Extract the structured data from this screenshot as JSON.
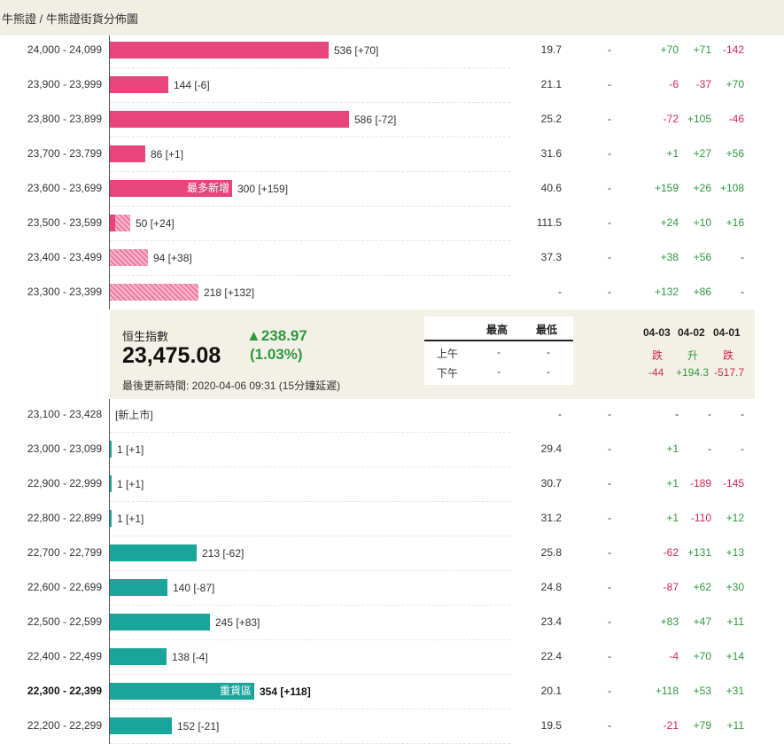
{
  "breadcrumb": "牛熊證 / 牛熊證街貨分佈圖",
  "colors": {
    "bull": "#e8457c",
    "bear": "#1aa59a",
    "up": "#2c9a3c",
    "down": "#d0284f",
    "panel": "#f3f1e7"
  },
  "rows_top": [
    {
      "range": "24,000 - 24,099",
      "label": "536 [+70]",
      "amount": 536,
      "style": "pink",
      "ratio": "19.7",
      "dash": "-",
      "c1": "+70",
      "c2": "+71",
      "c3": "-142"
    },
    {
      "range": "23,900 - 23,999",
      "label": "144 [-6]",
      "amount": 144,
      "style": "pink",
      "ratio": "21.1",
      "dash": "-",
      "c1": "-6",
      "c2": "-37",
      "c3": "+70"
    },
    {
      "range": "23,800 - 23,899",
      "label": "586 [-72]",
      "amount": 586,
      "style": "pink",
      "ratio": "25.2",
      "dash": "-",
      "c1": "-72",
      "c2": "+105",
      "c3": "-46"
    },
    {
      "range": "23,700 - 23,799",
      "label": "86 [+1]",
      "amount": 86,
      "style": "pink",
      "ratio": "31.6",
      "dash": "-",
      "c1": "+1",
      "c2": "+27",
      "c3": "+56"
    },
    {
      "range": "23,600 - 23,699",
      "label": "300 [+159]",
      "amount": 300,
      "style": "pink",
      "tag": "最多新增",
      "ratio": "40.6",
      "dash": "-",
      "c1": "+159",
      "c2": "+26",
      "c3": "+108"
    },
    {
      "range": "23,500 - 23,599",
      "label": "50 [+24]",
      "amount": 50,
      "style": "mixed",
      "solid_share": 0.24,
      "ratio": "111.5",
      "dash": "-",
      "c1": "+24",
      "c2": "+10",
      "c3": "+16"
    },
    {
      "range": "23,400 - 23,499",
      "label": "94 [+38]",
      "amount": 94,
      "style": "pinkhatch",
      "ratio": "37.3",
      "dash": "-",
      "c1": "+38",
      "c2": "+56",
      "c3": "-"
    },
    {
      "range": "23,300 - 23,399",
      "label": "218 [+132]",
      "amount": 218,
      "style": "pinkhatch",
      "ratio": "-",
      "dash": "-",
      "c1": "+132",
      "c2": "+86",
      "c3": "-"
    }
  ],
  "index": {
    "name": "恒生指數",
    "value": "23,475.08",
    "change": "▲238.97",
    "change_pct": "(1.03%)",
    "updated": "最後更新時間: 2020-04-06 09:31 (15分鐘延遲)",
    "hl_headers": [
      "最高",
      "最低"
    ],
    "hl_rows": [
      {
        "label": "上午",
        "high": "-",
        "low": "-"
      },
      {
        "label": "下午",
        "high": "-",
        "low": "-"
      }
    ],
    "dates": [
      "04-03",
      "04-02",
      "04-01"
    ],
    "directions": [
      "跌",
      "升",
      "跌"
    ],
    "day_changes": [
      "-44",
      "+194.3",
      "-517.7"
    ]
  },
  "rows_bottom": [
    {
      "range": "23,100 - 23,428",
      "label": "[新上市]",
      "amount": 0,
      "style": "none",
      "ratio": "-",
      "dash": "-",
      "c1": "-",
      "c2": "-",
      "c3": "-"
    },
    {
      "range": "23,000 - 23,099",
      "label": "1 [+1]",
      "amount": 1,
      "style": "teal",
      "ratio": "29.4",
      "dash": "-",
      "c1": "+1",
      "c2": "-",
      "c3": "-"
    },
    {
      "range": "22,900 - 22,999",
      "label": "1 [+1]",
      "amount": 1,
      "style": "teal",
      "ratio": "30.7",
      "dash": "-",
      "c1": "+1",
      "c2": "-189",
      "c3": "-145"
    },
    {
      "range": "22,800 - 22,899",
      "label": "1 [+1]",
      "amount": 1,
      "style": "teal",
      "ratio": "31.2",
      "dash": "-",
      "c1": "+1",
      "c2": "-110",
      "c3": "+12"
    },
    {
      "range": "22,700 - 22,799",
      "label": "213 [-62]",
      "amount": 213,
      "style": "teal",
      "ratio": "25.8",
      "dash": "-",
      "c1": "-62",
      "c2": "+131",
      "c3": "+13"
    },
    {
      "range": "22,600 - 22,699",
      "label": "140 [-87]",
      "amount": 140,
      "style": "teal",
      "ratio": "24.8",
      "dash": "-",
      "c1": "-87",
      "c2": "+62",
      "c3": "+30"
    },
    {
      "range": "22,500 - 22,599",
      "label": "245 [+83]",
      "amount": 245,
      "style": "teal",
      "ratio": "23.4",
      "dash": "-",
      "c1": "+83",
      "c2": "+47",
      "c3": "+11"
    },
    {
      "range": "22,400 - 22,499",
      "label": "138 [-4]",
      "amount": 138,
      "style": "teal",
      "ratio": "22.4",
      "dash": "-",
      "c1": "-4",
      "c2": "+70",
      "c3": "+14"
    },
    {
      "range": "22,300 - 22,399",
      "label": "354 [+118]",
      "amount": 354,
      "style": "teal",
      "tag": "重貨區",
      "bold": true,
      "ratio": "20.1",
      "dash": "-",
      "c1": "+118",
      "c2": "+53",
      "c3": "+31"
    },
    {
      "range": "22,200 - 22,299",
      "label": "152 [-21]",
      "amount": 152,
      "style": "teal",
      "ratio": "19.5",
      "dash": "-",
      "c1": "-21",
      "c2": "+79",
      "c3": "+11"
    }
  ]
}
